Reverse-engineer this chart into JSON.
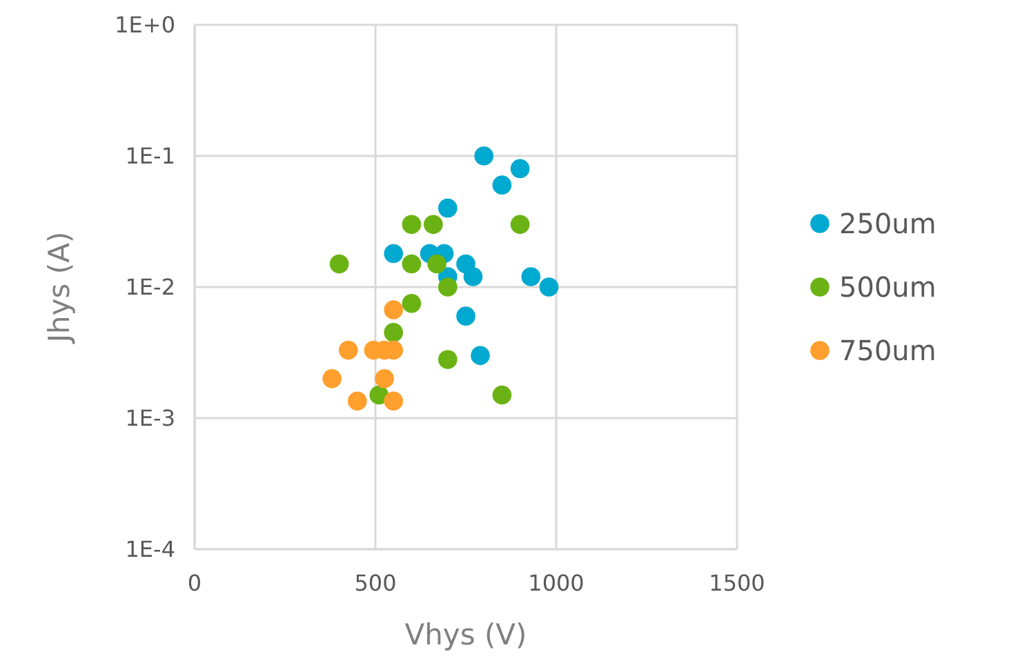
{
  "chart_data": {
    "type": "scatter",
    "xlabel": "Vhys (V)",
    "ylabel": "Jhys (A)",
    "log": "y",
    "grid": true,
    "legend": "right",
    "marker": "circle",
    "xlim": [
      0,
      1500
    ],
    "xticks": [
      0,
      500,
      1000,
      1500
    ],
    "ylim": [
      0.0001,
      1
    ],
    "yticks": [
      {
        "value": 0.0001,
        "label": "1E-4"
      },
      {
        "value": 0.001,
        "label": "1E-3"
      },
      {
        "value": 0.01,
        "label": "1E-2"
      },
      {
        "value": 0.1,
        "label": "1E-1"
      },
      {
        "value": 1,
        "label": "1E+0"
      }
    ],
    "series": [
      {
        "name": "250um",
        "color": "#00a9cf",
        "x": [
          550,
          650,
          690,
          700,
          700,
          750,
          750,
          770,
          800,
          850,
          900,
          930,
          980,
          790
        ],
        "values": [
          0.018,
          0.018,
          0.018,
          0.04,
          0.012,
          0.015,
          0.006,
          0.012,
          0.1,
          0.06,
          0.08,
          0.012,
          0.01,
          0.003
        ]
      },
      {
        "name": "500um",
        "color": "#6bb314",
        "x": [
          400,
          600,
          660,
          600,
          670,
          600,
          550,
          510,
          700,
          700,
          900,
          850
        ],
        "values": [
          0.015,
          0.03,
          0.03,
          0.015,
          0.015,
          0.0075,
          0.0045,
          0.0015,
          0.01,
          0.0028,
          0.03,
          0.0015
        ]
      },
      {
        "name": "750um",
        "color": "#ff9f2e",
        "x": [
          380,
          425,
          495,
          525,
          550,
          525,
          450,
          550,
          550
        ],
        "values": [
          0.002,
          0.0033,
          0.0033,
          0.0033,
          0.0033,
          0.002,
          0.00135,
          0.00135,
          0.0067
        ]
      }
    ]
  }
}
